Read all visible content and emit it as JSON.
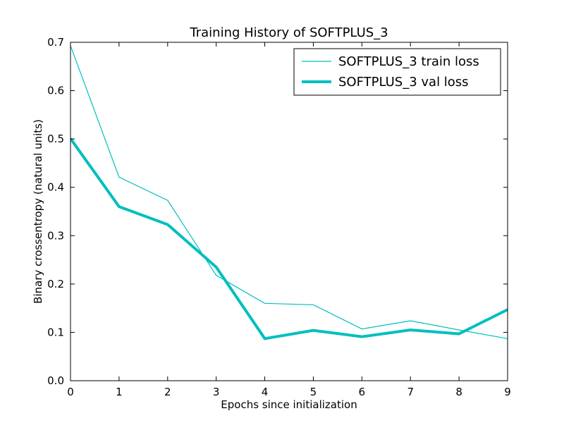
{
  "chart_data": {
    "type": "line",
    "title": "Training History of SOFTPLUS_3",
    "xlabel": "Epochs since initialization",
    "ylabel": "Binary crossentropy (natural units)",
    "xlim": [
      0,
      9
    ],
    "ylim": [
      0.0,
      0.7
    ],
    "x_ticks": [
      "0",
      "1",
      "2",
      "3",
      "4",
      "5",
      "6",
      "7",
      "8",
      "9"
    ],
    "y_ticks": [
      "0.0",
      "0.1",
      "0.2",
      "0.3",
      "0.4",
      "0.5",
      "0.6",
      "0.7"
    ],
    "grid": false,
    "legend_position": "top-right",
    "x": [
      0,
      1,
      2,
      3,
      4,
      5,
      6,
      7,
      8,
      9
    ],
    "series": [
      {
        "name": "SOFTPLUS_3 train loss",
        "values": [
          0.693,
          0.421,
          0.373,
          0.218,
          0.16,
          0.157,
          0.107,
          0.124,
          0.105,
          0.087
        ],
        "color": "#00bfbf",
        "style": "thin"
      },
      {
        "name": "SOFTPLUS_3 val loss",
        "values": [
          0.501,
          0.36,
          0.323,
          0.235,
          0.087,
          0.104,
          0.091,
          0.105,
          0.097,
          0.147
        ],
        "color": "#00bfbf",
        "style": "thick"
      }
    ]
  }
}
